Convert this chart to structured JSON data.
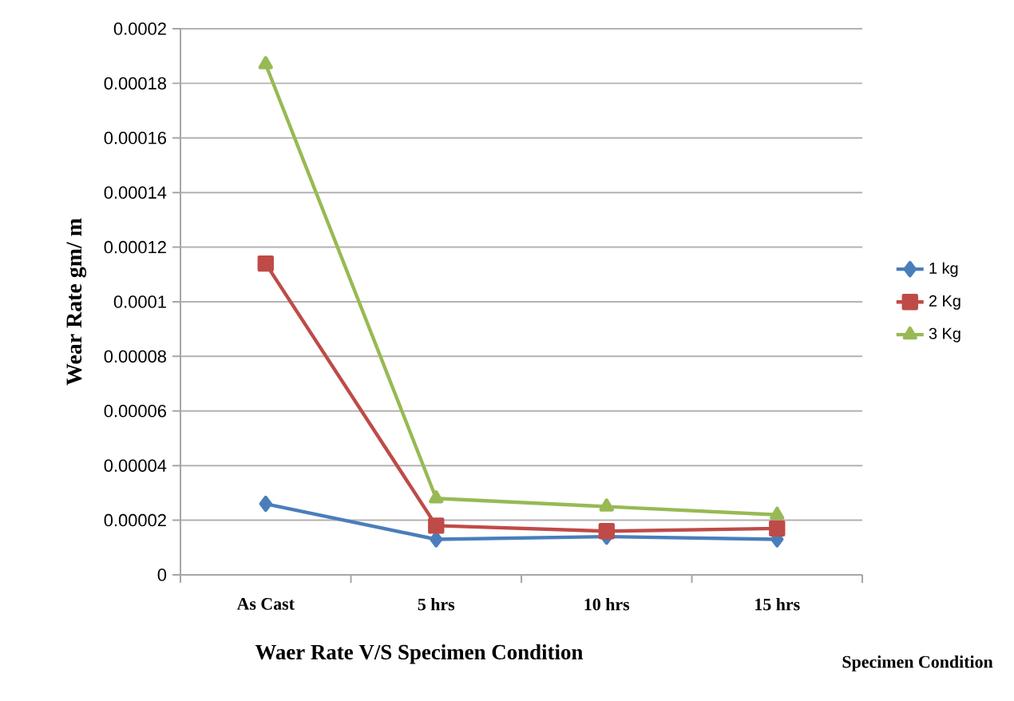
{
  "chart_data": {
    "type": "line",
    "xlabel": "Waer Rate V/S  Specimen Condition",
    "ylabel": "Wear Rate  gm/ m",
    "annotations": [
      "Specimen Condition"
    ],
    "categories": [
      "As Cast",
      "5 hrs",
      "10 hrs",
      "15 hrs"
    ],
    "series": [
      {
        "name": "1 kg",
        "color": "#4a7ebb",
        "marker": "diamond",
        "values": [
          2.6e-05,
          1.3e-05,
          1.4e-05,
          1.3e-05
        ]
      },
      {
        "name": "2 Kg",
        "color": "#be4b48",
        "marker": "square",
        "values": [
          0.000114,
          1.8e-05,
          1.6e-05,
          1.7e-05
        ]
      },
      {
        "name": "3 Kg",
        "color": "#98b954",
        "marker": "triangle",
        "values": [
          0.000187,
          2.8e-05,
          2.5e-05,
          2.2e-05
        ]
      }
    ],
    "ylim": [
      0,
      0.0002
    ],
    "yticks": [
      {
        "value": 0,
        "label": "0"
      },
      {
        "value": 2e-05,
        "label": "0.00002"
      },
      {
        "value": 4e-05,
        "label": "0.00004"
      },
      {
        "value": 6e-05,
        "label": "0.00006"
      },
      {
        "value": 8e-05,
        "label": "0.00008"
      },
      {
        "value": 0.0001,
        "label": "0.0001"
      },
      {
        "value": 0.00012,
        "label": "0.00012"
      },
      {
        "value": 0.00014,
        "label": "0.00014"
      },
      {
        "value": 0.00016,
        "label": "0.00016"
      },
      {
        "value": 0.00018,
        "label": "0.00018"
      },
      {
        "value": 0.0002,
        "label": "0.0002"
      }
    ],
    "grid": "y",
    "legend": "right",
    "line_style": "solid"
  }
}
